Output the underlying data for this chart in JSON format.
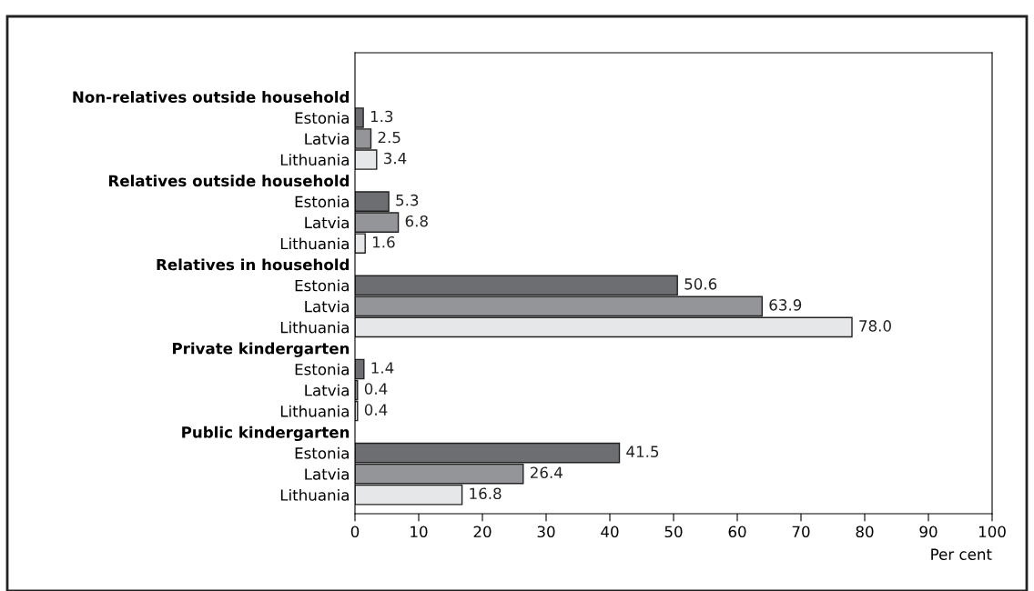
{
  "chart_data": {
    "type": "bar",
    "orientation": "horizontal",
    "xlabel": "Per cent",
    "categories": [
      "Non-relatives outside household",
      "Estonia",
      "Latvia",
      "Lithuania",
      "Relatives outside household",
      "Estonia",
      "Latvia",
      "Lithuania",
      "Relatives in household",
      "Estonia",
      "Latvia",
      "Lithuania",
      "Private kindergarten",
      "Estonia",
      "Latvia",
      "Lithuania",
      "Public kindergarten",
      "Estonia",
      "Latvia",
      "Lithuania"
    ],
    "values": [
      null,
      1.3,
      2.5,
      3.4,
      null,
      5.3,
      6.8,
      1.6,
      null,
      50.6,
      63.9,
      78.0,
      null,
      1.4,
      0.4,
      0.4,
      null,
      41.5,
      26.4,
      16.8
    ],
    "value_labels": [
      null,
      "1.3",
      "2.5",
      "3.4",
      null,
      "5.3",
      "6.8",
      "1.6",
      null,
      "50.6",
      "63.9",
      "78.0",
      null,
      "1.4",
      "0.4",
      "0.4",
      null,
      "41.5",
      "26.4",
      "16.8"
    ],
    "colors": [
      "#ffffff",
      "#6d6e71",
      "#939598",
      "#e6e7e8",
      "#ffffff",
      "#6d6e71",
      "#939598",
      "#e6e7e8",
      "#ffffff",
      "#6d6e71",
      "#939598",
      "#e6e7e8",
      "#ffffff",
      "#6d6e71",
      "#939598",
      "#e6e7e8",
      "#ffffff",
      "#6d6e71",
      "#939598",
      "#e6e7e8"
    ],
    "xlim": [
      0,
      100
    ],
    "xticks": [
      0,
      10,
      20,
      30,
      40,
      50,
      60,
      70,
      80,
      90,
      100
    ],
    "grid": false,
    "legend": false
  }
}
